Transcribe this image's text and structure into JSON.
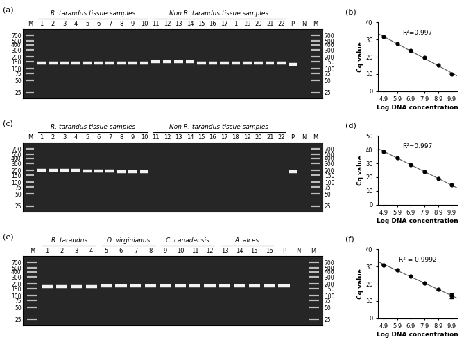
{
  "chart_data": [
    {
      "type": "gel",
      "label": "(a)",
      "categories": [
        "M",
        "1",
        "2",
        "3",
        "4",
        "5",
        "6",
        "7",
        "8",
        "9",
        "10",
        "11",
        "12",
        "13",
        "14",
        "15",
        "16",
        "17",
        "1",
        "19",
        "20",
        "21",
        "22",
        "P",
        "N",
        "M"
      ],
      "values": [
        null,
        140,
        140,
        140,
        140,
        140,
        140,
        140,
        140,
        140,
        140,
        150,
        150,
        150,
        150,
        140,
        140,
        140,
        140,
        140,
        140,
        140,
        140,
        128,
        null,
        null
      ],
      "ladder": [
        25,
        50,
        75,
        100,
        150,
        200,
        300,
        400,
        500,
        700
      ],
      "groups": [
        {
          "label": "R. tarandus tissue samples",
          "first": "1",
          "last": "10"
        },
        {
          "label": "Non R. tarandus tissue samples",
          "first": "11",
          "last": "22"
        }
      ],
      "log": "y",
      "ylim": [
        18,
        1000
      ],
      "yticks": [
        25,
        50,
        75,
        100,
        150,
        200,
        300,
        400,
        500,
        700
      ]
    },
    {
      "type": "scatter",
      "label": "(b)",
      "x": [
        4.9,
        5.9,
        6.9,
        7.9,
        8.9,
        9.9
      ],
      "values": [
        31.5,
        27.5,
        23.5,
        19.5,
        15.3,
        10.0
      ],
      "xlabel": "Log DNA concentration",
      "ylabel": "Cq value",
      "annotation": "R²=0.997",
      "xlim": [
        4.5,
        10.3
      ],
      "xticks": [
        4.9,
        5.9,
        6.9,
        7.9,
        8.9,
        9.9
      ],
      "ylim": [
        0,
        40
      ],
      "yticks": [
        0,
        10,
        20,
        30,
        40
      ]
    },
    {
      "type": "gel",
      "label": "(c)",
      "categories": [
        "M",
        "1",
        "2",
        "3",
        "4",
        "5",
        "6",
        "7",
        "8",
        "9",
        "10",
        "11",
        "12",
        "13",
        "14",
        "15",
        "16",
        "17",
        "18",
        "19",
        "20",
        "21",
        "22",
        "P",
        "N",
        "M"
      ],
      "values": [
        null,
        200,
        200,
        200,
        197,
        195,
        193,
        190,
        188,
        186,
        185,
        null,
        null,
        null,
        null,
        null,
        null,
        null,
        null,
        null,
        null,
        null,
        null,
        185,
        null,
        null
      ],
      "ladder": [
        25,
        50,
        75,
        100,
        150,
        200,
        300,
        400,
        500,
        700
      ],
      "groups": [
        {
          "label": "R. tarandus tissue samples",
          "first": "1",
          "last": "10"
        },
        {
          "label": "Non R. tarandus tissue samples",
          "first": "11",
          "last": "22"
        }
      ],
      "log": "y",
      "ylim": [
        18,
        1000
      ],
      "yticks": [
        25,
        50,
        75,
        100,
        150,
        200,
        300,
        400,
        500,
        700
      ]
    },
    {
      "type": "scatter",
      "label": "(d)",
      "x": [
        4.9,
        5.9,
        6.9,
        7.9,
        8.9,
        9.9
      ],
      "values": [
        38.8,
        34.0,
        29.0,
        23.8,
        19.0,
        14.5
      ],
      "xlabel": "Log DNA concentration",
      "ylabel": "Cq value",
      "annotation": "R²=0.997",
      "xlim": [
        4.5,
        10.3
      ],
      "xticks": [
        4.9,
        5.9,
        6.9,
        7.9,
        8.9,
        9.9
      ],
      "ylim": [
        0,
        50
      ],
      "yticks": [
        0,
        10,
        20,
        30,
        40,
        50
      ]
    },
    {
      "type": "gel",
      "label": "(e)",
      "categories": [
        "M",
        "1",
        "2",
        "3",
        "4",
        "5",
        "6",
        "7",
        "8",
        "9",
        "10",
        "11",
        "12",
        "13",
        "14",
        "15",
        "16",
        "P",
        "N",
        "M"
      ],
      "values": [
        null,
        170,
        170,
        170,
        170,
        175,
        175,
        175,
        175,
        180,
        180,
        180,
        180,
        180,
        180,
        180,
        180,
        180,
        null,
        null
      ],
      "ladder": [
        25,
        50,
        75,
        100,
        150,
        200,
        300,
        400,
        500,
        700
      ],
      "groups": [
        {
          "label": "R. tarandus",
          "first": "1",
          "last": "4"
        },
        {
          "label": "O. virginianus",
          "first": "5",
          "last": "8"
        },
        {
          "label": "C. canadensis",
          "first": "9",
          "last": "12"
        },
        {
          "label": "A. alces",
          "first": "13",
          "last": "16"
        }
      ],
      "log": "y",
      "ylim": [
        18,
        1000
      ],
      "yticks": [
        25,
        50,
        75,
        100,
        150,
        200,
        300,
        400,
        500,
        700
      ]
    },
    {
      "type": "scatter",
      "label": "(f)",
      "x": [
        4.9,
        5.9,
        6.9,
        7.9,
        8.9,
        9.9
      ],
      "values": [
        31.0,
        28.0,
        24.3,
        20.5,
        16.8,
        13.0
      ],
      "errors": [
        0.3,
        0.3,
        0.4,
        0.3,
        0.5,
        1.5
      ],
      "xlabel": "Log DNA concentration",
      "ylabel": "Cq value",
      "annotation": "R² = 0.9992",
      "xlim": [
        4.5,
        10.3
      ],
      "xticks": [
        4.9,
        5.9,
        6.9,
        7.9,
        8.9,
        9.9
      ],
      "ylim": [
        0,
        40
      ],
      "yticks": [
        0,
        10,
        20,
        30,
        40
      ]
    }
  ]
}
